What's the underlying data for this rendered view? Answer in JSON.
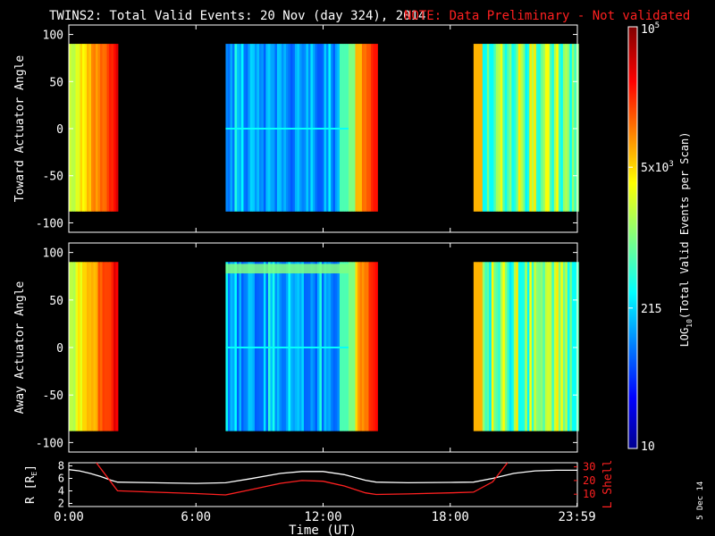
{
  "title": "TWINS2: Total Valid Events: 20 Nov (day 324), 2014",
  "note": "NOTE: Data Preliminary - Not validated",
  "date_stamp": "5 Dec 14",
  "colors": {
    "background": "#000000",
    "axis": "#ffffff",
    "note": "#ff2020",
    "r_line": "#ffffff",
    "lshell_line": "#ff2020"
  },
  "chart_data": [
    {
      "type": "heatmap",
      "name": "toward",
      "ylabel": "Toward Actuator Angle",
      "ylim": [
        -110,
        110
      ],
      "yticks": [
        100,
        50,
        0,
        -50,
        -100
      ],
      "data_angle_range": [
        -88,
        90
      ],
      "xlim_hours": [
        0,
        24
      ],
      "segments": [
        {
          "start": 0.0,
          "end": 2.3,
          "regime": "high"
        },
        {
          "start": 7.4,
          "end": 13.2,
          "regime": "low"
        },
        {
          "start": 13.2,
          "end": 14.5,
          "regime": "high"
        },
        {
          "start": 19.1,
          "end": 23.99,
          "regime": "mid"
        }
      ]
    },
    {
      "type": "heatmap",
      "name": "away",
      "ylabel": "Away Actuator Angle",
      "ylim": [
        -110,
        110
      ],
      "yticks": [
        100,
        50,
        0,
        -50,
        -100
      ],
      "data_angle_range": [
        -88,
        90
      ],
      "xlim_hours": [
        0,
        24
      ],
      "segments": [
        {
          "start": 0.0,
          "end": 2.3,
          "regime": "high"
        },
        {
          "start": 7.4,
          "end": 13.2,
          "regime": "low",
          "band_top": true
        },
        {
          "start": 13.2,
          "end": 14.5,
          "regime": "high"
        },
        {
          "start": 19.1,
          "end": 23.99,
          "regime": "mid"
        }
      ]
    },
    {
      "type": "colorbar",
      "label": "LOG10(Total Valid Events per Scan)",
      "label_prefix": "LOG",
      "label_sub": "10",
      "label_suffix": "(Total Valid Events per Scan)",
      "tick_labels": [
        {
          "text": "10",
          "frac": 0.0
        },
        {
          "text": "215",
          "frac": 0.333
        },
        {
          "text": "5x10",
          "sup": "3",
          "frac": 0.667
        },
        {
          "text": "10",
          "sup": "5",
          "frac": 1.0
        }
      ]
    },
    {
      "type": "line",
      "name": "orbit",
      "xlabel": "Time (UT)",
      "xticks": [
        "0:00",
        "6:00",
        "12:00",
        "18:00",
        "23:59"
      ],
      "xtick_hours": [
        0,
        6,
        12,
        18,
        23.983
      ],
      "left_axis": {
        "label": "R [RE]",
        "label_main": "R [R",
        "label_sub": "E",
        "label_end": "]",
        "ticks": [
          2,
          4,
          6,
          8
        ],
        "ylim": [
          1.5,
          8.5
        ]
      },
      "right_axis": {
        "label": "L Shell",
        "ticks": [
          10,
          20,
          30
        ],
        "ylim": [
          1,
          33
        ]
      },
      "series": [
        {
          "name": "R",
          "axis": "left",
          "x": [
            0,
            0.5,
            1,
            1.5,
            2,
            2.3,
            4,
            6,
            7.4,
            8.5,
            10,
            11,
            12,
            13,
            14,
            14.5,
            16,
            18,
            19.1,
            20,
            21,
            22,
            23,
            23.99
          ],
          "y": [
            7.4,
            7.2,
            6.8,
            6.3,
            5.7,
            5.4,
            5.3,
            5.2,
            5.3,
            5.9,
            6.8,
            7.1,
            7.1,
            6.6,
            5.7,
            5.4,
            5.3,
            5.35,
            5.4,
            6.0,
            6.8,
            7.2,
            7.3,
            7.3
          ]
        },
        {
          "name": "L Shell",
          "axis": "right",
          "x": [
            1.3,
            2.3,
            4,
            6,
            7.4,
            8.5,
            10,
            11,
            12,
            13,
            14,
            14.5,
            16,
            18,
            19.1,
            20,
            20.7
          ],
          "y": [
            33,
            12.5,
            11.5,
            10.5,
            9.5,
            13,
            18,
            20,
            19.5,
            16,
            11,
            9.8,
            10.2,
            11,
            11.5,
            19,
            33
          ]
        }
      ]
    }
  ]
}
